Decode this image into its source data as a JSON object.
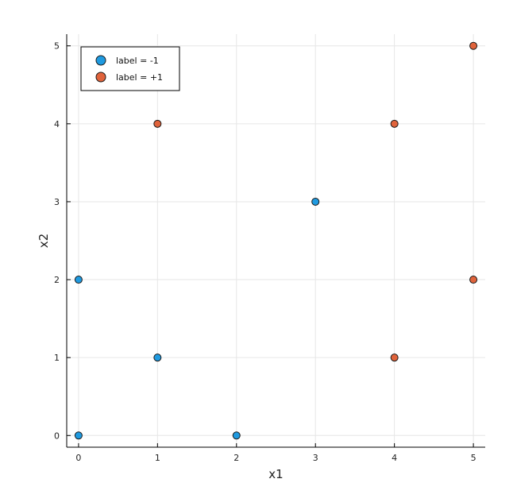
{
  "chart_data": {
    "type": "scatter",
    "title": "",
    "xlabel": "x1",
    "ylabel": "x2",
    "xlim": [
      -0.15,
      5.15
    ],
    "ylim": [
      -0.15,
      5.15
    ],
    "xticks": [
      "0",
      "1",
      "2",
      "3",
      "4",
      "5"
    ],
    "yticks": [
      "0",
      "1",
      "2",
      "3",
      "4",
      "5"
    ],
    "grid": true,
    "legend_position": "top-left",
    "series": [
      {
        "name": "label = -1",
        "color": "#1f9ae0",
        "points": [
          [
            0,
            0
          ],
          [
            0,
            2
          ],
          [
            1,
            1
          ],
          [
            2,
            0
          ],
          [
            3,
            3
          ]
        ]
      },
      {
        "name": "label = +1",
        "color": "#e0633b",
        "points": [
          [
            1,
            4
          ],
          [
            4,
            4
          ],
          [
            4,
            1
          ],
          [
            5,
            5
          ],
          [
            5,
            2
          ]
        ]
      }
    ]
  }
}
